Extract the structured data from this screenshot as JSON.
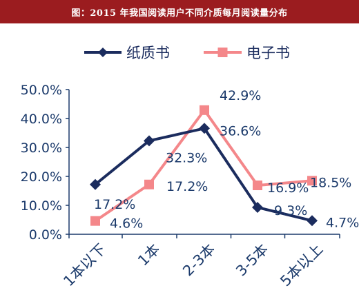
{
  "header": {
    "title": "图：2015 年我国阅读用户不同介质每月阅读量分布"
  },
  "chart_data": {
    "type": "line",
    "categories": [
      "1本以下",
      "1本",
      "2-3本",
      "3-5本",
      "5本以上"
    ],
    "series": [
      {
        "name": "纸质书",
        "values": [
          17.2,
          32.3,
          36.6,
          9.3,
          4.7
        ],
        "color": "#1b2c5e",
        "marker": "diamond",
        "labels": [
          "17.2%",
          "32.3%",
          "36.6%",
          "9.3%",
          "4.7%"
        ]
      },
      {
        "name": "电子书",
        "values": [
          4.6,
          17.2,
          42.9,
          16.9,
          18.5
        ],
        "color": "#f4878a",
        "marker": "square",
        "labels": [
          "4.6%",
          "17.2%",
          "42.9%",
          "16.9%",
          "18.5%"
        ]
      }
    ],
    "ylim": [
      0,
      50
    ],
    "yticks": [
      "0.0%",
      "10.0%",
      "20.0%",
      "30.0%",
      "40.0%",
      "50.0%"
    ],
    "axis_color": "#1b3a6b",
    "legend_position": "top-center",
    "grid": false
  }
}
